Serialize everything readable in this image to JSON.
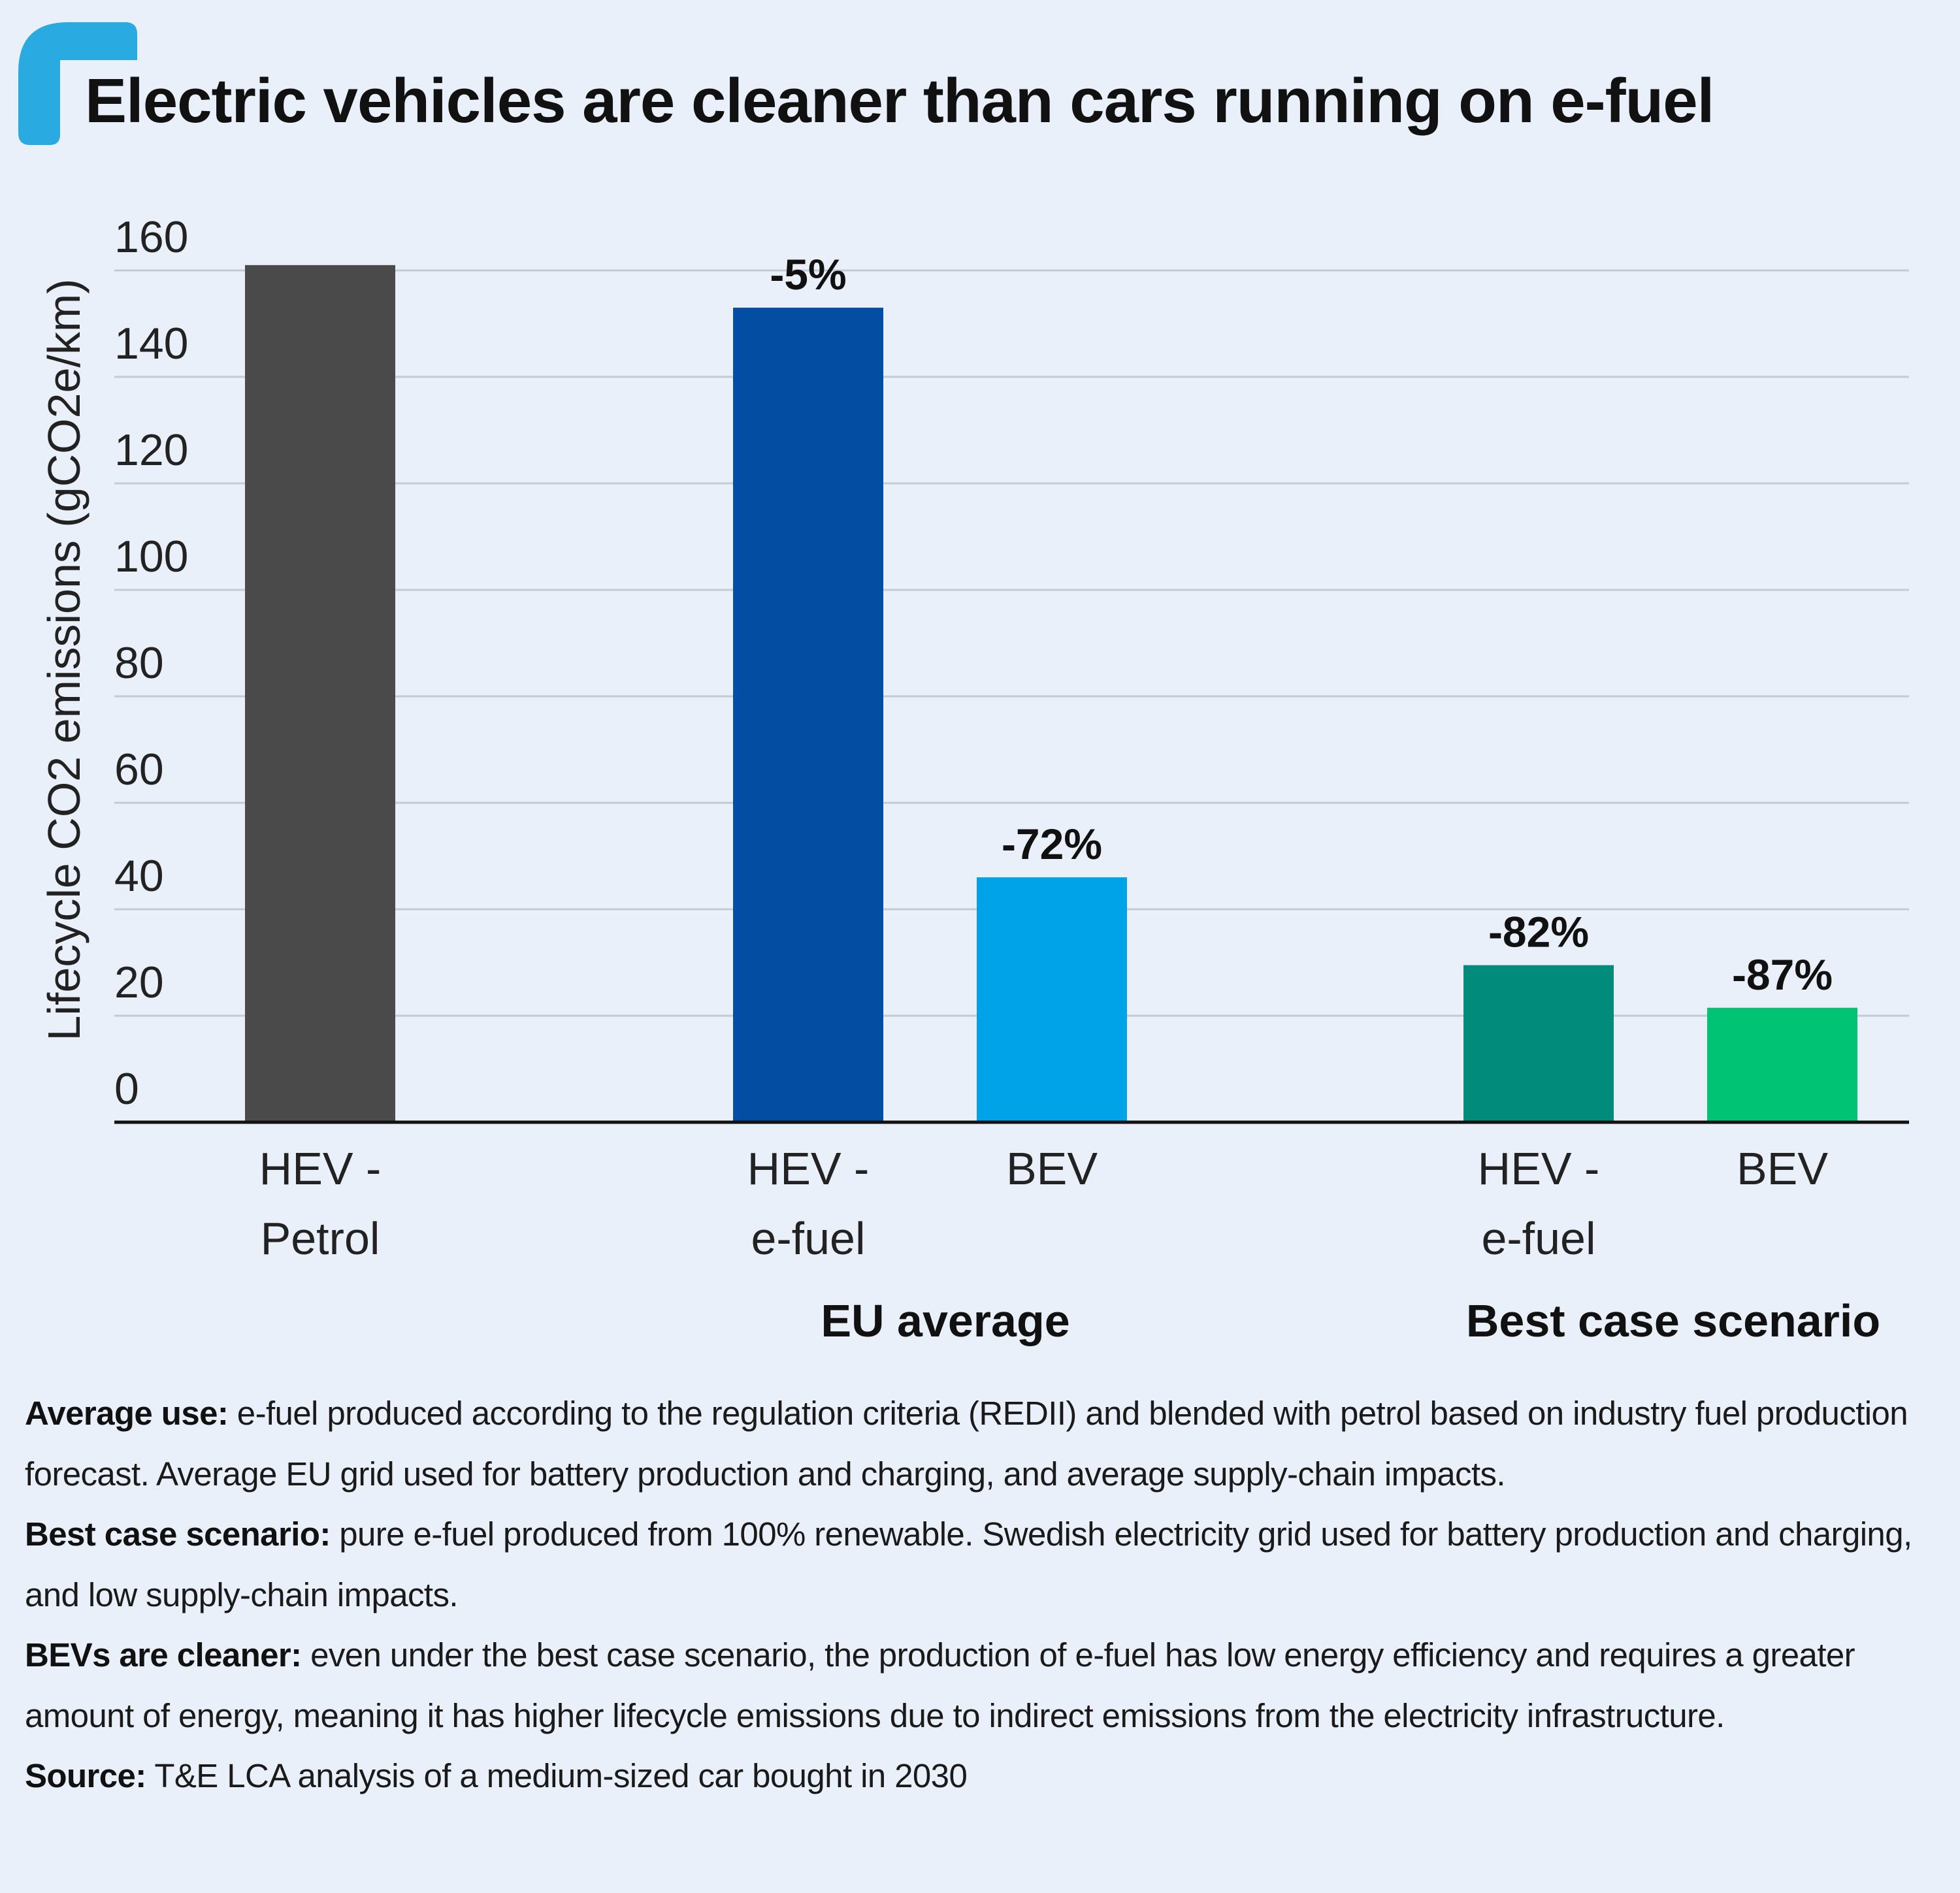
{
  "title": "Electric vehicles are cleaner than cars running on e-fuel",
  "colors": {
    "background": "#eaf0f9",
    "brand_corner": "#29abe2",
    "gridline": "#c5cbd6",
    "axis": "#111111"
  },
  "chart_data": {
    "type": "bar",
    "title": "Electric vehicles are cleaner than cars running on e-fuel",
    "ylabel": "Lifecycle CO2 emissions (gCO2e/km)",
    "xlabel": "",
    "ylim": [
      0,
      160
    ],
    "yticks": [
      0,
      20,
      40,
      60,
      80,
      100,
      120,
      140,
      160
    ],
    "grid": true,
    "bars": [
      {
        "category": [
          "HEV -",
          "Petrol"
        ],
        "value": 161,
        "label": "",
        "color": "#4a4a4a",
        "group": ""
      },
      {
        "category": [
          "HEV -",
          "e-fuel"
        ],
        "value": 153,
        "label": "-5%",
        "color": "#034ea2",
        "group": "EU average"
      },
      {
        "category": [
          "BEV"
        ],
        "value": 46,
        "label": "-72%",
        "color": "#00a3e8",
        "group": "EU average"
      },
      {
        "category": [
          "HEV -",
          "e-fuel"
        ],
        "value": 29.5,
        "label": "-82%",
        "color": "#008b7a",
        "group": "Best case scenario"
      },
      {
        "category": [
          "BEV"
        ],
        "value": 21.5,
        "label": "-87%",
        "color": "#00c373",
        "group": "Best case scenario"
      }
    ],
    "groups": [
      "EU average",
      "Best case scenario"
    ]
  },
  "notes": [
    {
      "label": "Average use:",
      "text": " e-fuel produced according to the regulation criteria (REDII) and blended with petrol based on industry fuel production forecast. Average EU grid used for battery production and charging, and average supply-chain impacts."
    },
    {
      "label": "Best case scenario:",
      "text": " pure e-fuel produced from 100% renewable. Swedish electricity grid used for battery production and charging, and low supply-chain impacts."
    },
    {
      "label": "BEVs are cleaner:",
      "text": " even under the best case scenario, the production of e-fuel has low energy efficiency and requires a greater amount of energy, meaning it has higher lifecycle emissions due to indirect emissions from the electricity infrastructure."
    },
    {
      "label": "Source:",
      "text": " T&E LCA analysis of a medium-sized car bought in 2030"
    }
  ]
}
